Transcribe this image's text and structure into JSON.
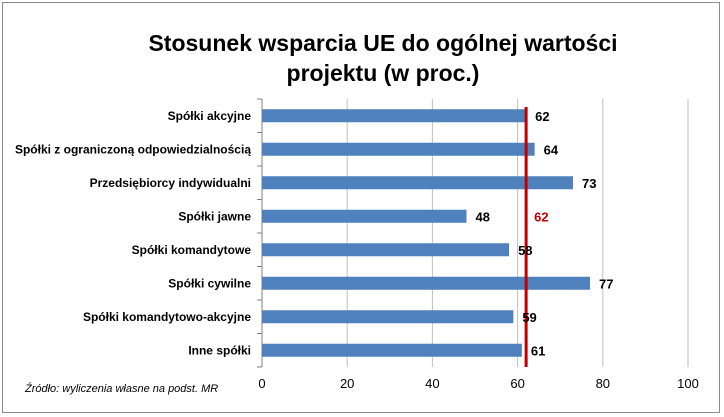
{
  "chart_data": {
    "type": "bar",
    "orientation": "horizontal",
    "title_lines": [
      "Stosunek wsparcia UE do ogólnej wartości",
      "projektu (w proc.)"
    ],
    "categories": [
      "Spółki akcyjne",
      "Spółki z ograniczoną odpowiedzialnością",
      "Przedsiębiorcy indywidualni",
      "Spółki jawne",
      "Spółki komandytowe",
      "Spółki cywilne",
      "Spółki komandytowo-akcyjne",
      "Inne spółki"
    ],
    "values": [
      62,
      64,
      73,
      48,
      58,
      77,
      59,
      61
    ],
    "xlim": [
      0,
      100
    ],
    "x_ticks": [
      0,
      20,
      40,
      60,
      80,
      100
    ],
    "gridlines": "vertical",
    "bar_color": "#4f81bd",
    "reference_line": {
      "value": 62,
      "label": "62",
      "color": "#c00000"
    },
    "source": "Źródło: wyliczenia własne na podst. MR"
  }
}
